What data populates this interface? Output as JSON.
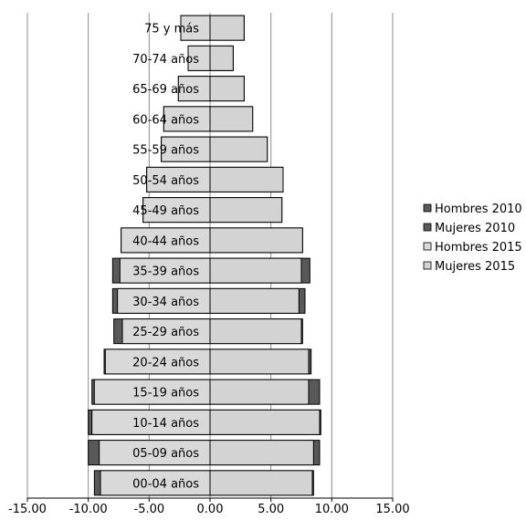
{
  "chart_data": {
    "type": "bar",
    "orientation": "horizontal",
    "layout": "population-pyramid",
    "categories": [
      "00-04 años",
      "05-09 años",
      "10-14 años",
      "15-19 años",
      "20-24 años",
      "25-29 años",
      "30-34 años",
      "35-39 años",
      "40-44 años",
      "45-49 años",
      "50-54 años",
      "55-59 años",
      "60-64 años",
      "65-69 años",
      "70-74 años",
      "75 y más"
    ],
    "series": [
      {
        "name": "Hombres 2010",
        "color": "#595959",
        "values": [
          -9.5,
          -10.0,
          -10.0,
          -9.7,
          -8.7,
          -7.9,
          -8.0,
          -8.0,
          -7.3,
          -5.5,
          -5.2,
          -4.0,
          -3.8,
          -2.6,
          -1.8,
          -2.4
        ]
      },
      {
        "name": "Mujeres 2010",
        "color": "#595959",
        "values": [
          8.5,
          9.0,
          9.1,
          9.0,
          8.3,
          7.6,
          7.8,
          8.2,
          7.6,
          5.9,
          6.0,
          4.7,
          3.5,
          2.8,
          1.9,
          2.8
        ]
      },
      {
        "name": "Hombres 2015",
        "color": "#d9d9d9",
        "values": [
          -9.0,
          -9.1,
          -9.7,
          -9.5,
          -8.6,
          -7.2,
          -7.6,
          -7.4,
          -7.3,
          -5.5,
          -5.2,
          -4.0,
          -3.8,
          -2.6,
          -1.8,
          -2.4
        ]
      },
      {
        "name": "Mujeres 2015",
        "color": "#d3d3d3",
        "values": [
          8.4,
          8.5,
          9.0,
          8.1,
          8.1,
          7.5,
          7.3,
          7.5,
          7.6,
          5.9,
          6.0,
          4.7,
          3.5,
          2.8,
          1.9,
          2.8
        ]
      }
    ],
    "xlim": [
      -15,
      15
    ],
    "xticks": [
      "-15.00",
      "-10.00",
      "-5.00",
      "0.00",
      "5.00",
      "10.00",
      "15.00"
    ],
    "grid": "vertical",
    "legend_position": "right"
  }
}
